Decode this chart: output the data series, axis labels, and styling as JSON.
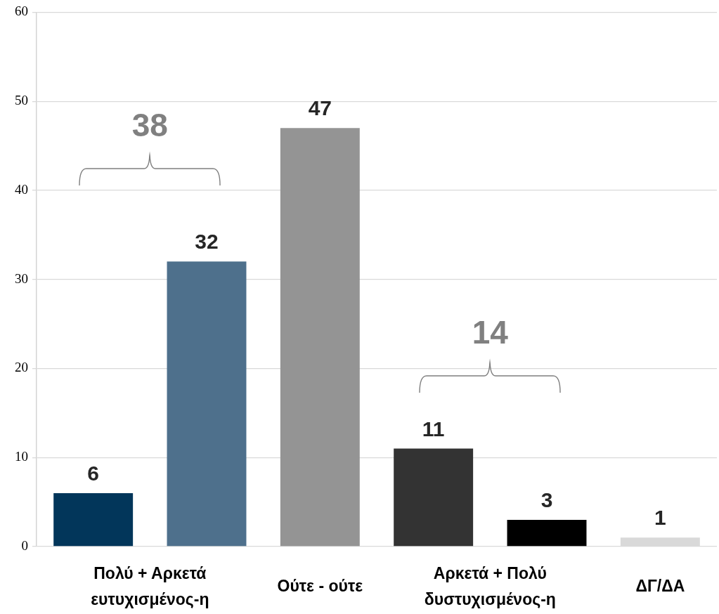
{
  "chart_data": {
    "type": "bar",
    "categories": [
      null,
      null,
      null,
      null,
      null,
      null
    ],
    "values": [
      6,
      32,
      47,
      11,
      3,
      1
    ],
    "colors": [
      "#02365a",
      "#4e708c",
      "#949494",
      "#333333",
      "#000000",
      "#d9d9d9"
    ],
    "ylim": [
      0,
      60
    ],
    "yticks": [
      0,
      10,
      20,
      30,
      40,
      50,
      60
    ],
    "grid": "y",
    "data_labels": true,
    "annotations": [
      "38",
      "14",
      "Πολύ + Αρκετά ευτυχισμένος-η",
      "Ούτε - ούτε",
      "Αρκετά + Πολύ δυστυχισμένος-η",
      "ΔΓ/ΔΑ"
    ]
  }
}
